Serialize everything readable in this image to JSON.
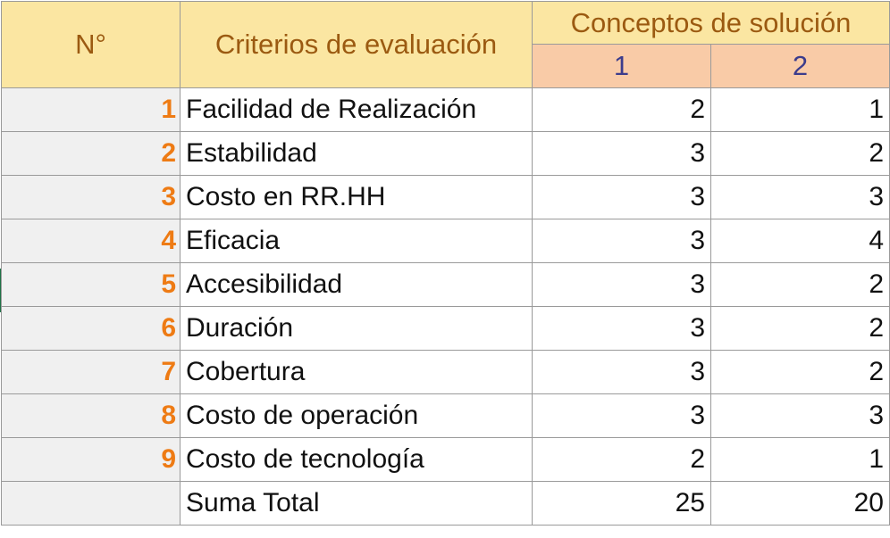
{
  "table": {
    "headers": {
      "number": "N°",
      "criteria": "Criterios de evaluación",
      "concepts": "Conceptos de solución",
      "concept_1": "1",
      "concept_2": "2"
    },
    "rows": [
      {
        "n": "1",
        "criterion": "Facilidad de Realización",
        "v1": "2",
        "v2": "1"
      },
      {
        "n": "2",
        "criterion": "Estabilidad",
        "v1": "3",
        "v2": "2"
      },
      {
        "n": "3",
        "criterion": "Costo en RR.HH",
        "v1": "3",
        "v2": "3"
      },
      {
        "n": "4",
        "criterion": "Eficacia",
        "v1": "3",
        "v2": "4"
      },
      {
        "n": "5",
        "criterion": "Accesibilidad",
        "v1": "3",
        "v2": "2"
      },
      {
        "n": "6",
        "criterion": "Duración",
        "v1": "3",
        "v2": "2"
      },
      {
        "n": "7",
        "criterion": "Cobertura",
        "v1": "3",
        "v2": "2"
      },
      {
        "n": "8",
        "criterion": "Costo de operación",
        "v1": "3",
        "v2": "3"
      },
      {
        "n": "9",
        "criterion": "Costo de tecnología",
        "v1": "2",
        "v2": "1"
      }
    ],
    "total": {
      "label": "Suma Total",
      "v1": "25",
      "v2": "20"
    }
  },
  "colors": {
    "header_yellow": "#fbe6a2",
    "header_orange": "#f9cba7",
    "header_text": "#9b5a11",
    "concept_number_text": "#3c3c8c",
    "row_number_text": "#ee7b14",
    "row_number_fill": "#f0f0f0",
    "selection_marker": "#1e7145"
  }
}
